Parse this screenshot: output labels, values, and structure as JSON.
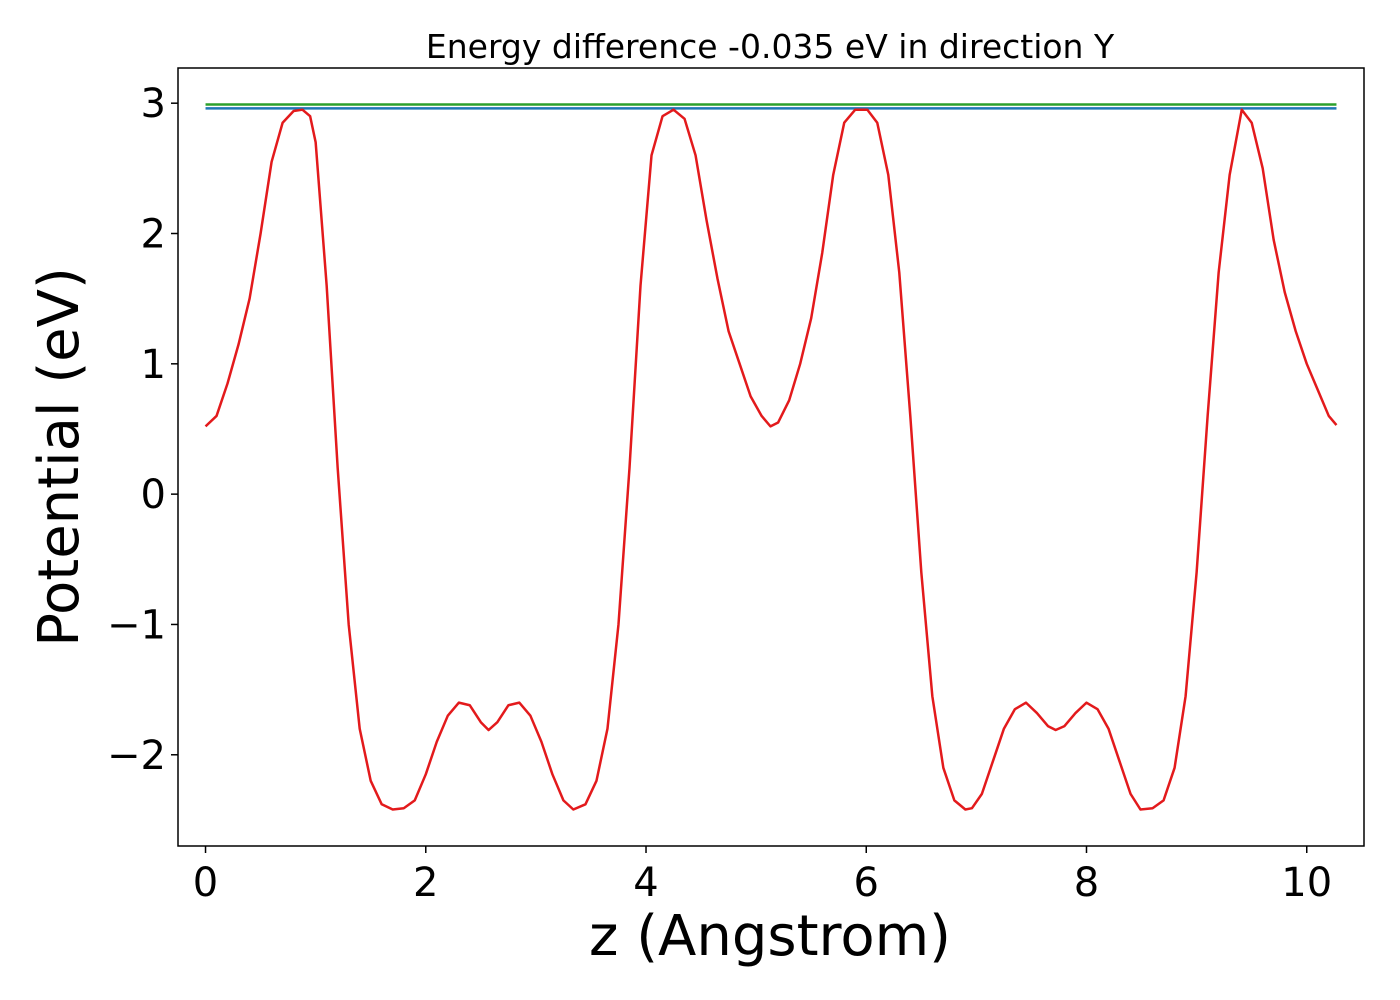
{
  "chart_data": {
    "type": "line",
    "title": "Energy difference -0.035 eV in direction Y",
    "xlabel": "z (Angstrom)",
    "ylabel": "Potential (eV)",
    "xlim": [
      -0.25,
      10.52
    ],
    "ylim": [
      -2.7,
      3.27
    ],
    "xticks": [
      0,
      2,
      4,
      6,
      8,
      10
    ],
    "xtick_labels": [
      "0",
      "2",
      "4",
      "6",
      "8",
      "10"
    ],
    "yticks": [
      -2,
      -1,
      0,
      1,
      2,
      3
    ],
    "ytick_labels": [
      "−2",
      "−1",
      "0",
      "1",
      "2",
      "3"
    ],
    "grid": false,
    "legend": "none",
    "series": [
      {
        "color": "#2ca02c",
        "x": [
          0,
          10.27
        ],
        "y": [
          2.99,
          2.99
        ]
      },
      {
        "color": "#1f77b4",
        "x": [
          0,
          10.27
        ],
        "y": [
          2.96,
          2.96
        ]
      },
      {
        "color": "#e31a1c",
        "x": [
          0,
          0.1,
          0.2,
          0.3,
          0.4,
          0.5,
          0.6,
          0.7,
          0.8,
          0.88,
          0.95,
          1.0,
          1.1,
          1.2,
          1.3,
          1.4,
          1.5,
          1.6,
          1.7,
          1.8,
          1.9,
          2.0,
          2.1,
          2.2,
          2.3,
          2.4,
          2.5,
          2.57,
          2.65,
          2.75,
          2.85,
          2.95,
          3.05,
          3.15,
          3.25,
          3.34,
          3.45,
          3.55,
          3.65,
          3.75,
          3.85,
          3.95,
          4.05,
          4.15,
          4.25,
          4.35,
          4.45,
          4.55,
          4.65,
          4.75,
          4.85,
          4.95,
          5.05,
          5.13,
          5.2,
          5.3,
          5.4,
          5.5,
          5.6,
          5.7,
          5.8,
          5.9,
          6.01,
          6.1,
          6.2,
          6.3,
          6.4,
          6.5,
          6.6,
          6.7,
          6.8,
          6.9,
          6.96,
          7.05,
          7.15,
          7.25,
          7.35,
          7.45,
          7.55,
          7.65,
          7.72,
          7.8,
          7.9,
          8.0,
          8.1,
          8.2,
          8.3,
          8.4,
          8.49,
          8.6,
          8.7,
          8.8,
          8.9,
          9.0,
          9.1,
          9.2,
          9.3,
          9.41,
          9.5,
          9.6,
          9.7,
          9.8,
          9.9,
          10.0,
          10.1,
          10.2,
          10.27
        ],
        "y": [
          0.52,
          0.6,
          0.85,
          1.15,
          1.5,
          2.0,
          2.55,
          2.85,
          2.94,
          2.95,
          2.9,
          2.7,
          1.6,
          0.2,
          -1.0,
          -1.8,
          -2.2,
          -2.38,
          -2.42,
          -2.41,
          -2.35,
          -2.15,
          -1.9,
          -1.7,
          -1.6,
          -1.62,
          -1.75,
          -1.81,
          -1.75,
          -1.62,
          -1.6,
          -1.7,
          -1.9,
          -2.15,
          -2.35,
          -2.42,
          -2.38,
          -2.2,
          -1.8,
          -1.0,
          0.2,
          1.6,
          2.6,
          2.9,
          2.95,
          2.88,
          2.6,
          2.1,
          1.65,
          1.25,
          1.0,
          0.75,
          0.6,
          0.52,
          0.55,
          0.72,
          1.0,
          1.35,
          1.85,
          2.45,
          2.85,
          2.95,
          2.95,
          2.85,
          2.45,
          1.7,
          0.6,
          -0.6,
          -1.55,
          -2.1,
          -2.35,
          -2.42,
          -2.41,
          -2.3,
          -2.05,
          -1.8,
          -1.65,
          -1.6,
          -1.68,
          -1.78,
          -1.81,
          -1.78,
          -1.68,
          -1.6,
          -1.65,
          -1.8,
          -2.05,
          -2.3,
          -2.42,
          -2.41,
          -2.35,
          -2.1,
          -1.55,
          -0.6,
          0.6,
          1.7,
          2.45,
          2.95,
          2.85,
          2.5,
          1.95,
          1.55,
          1.25,
          1.0,
          0.8,
          0.6,
          0.53
        ]
      }
    ]
  }
}
